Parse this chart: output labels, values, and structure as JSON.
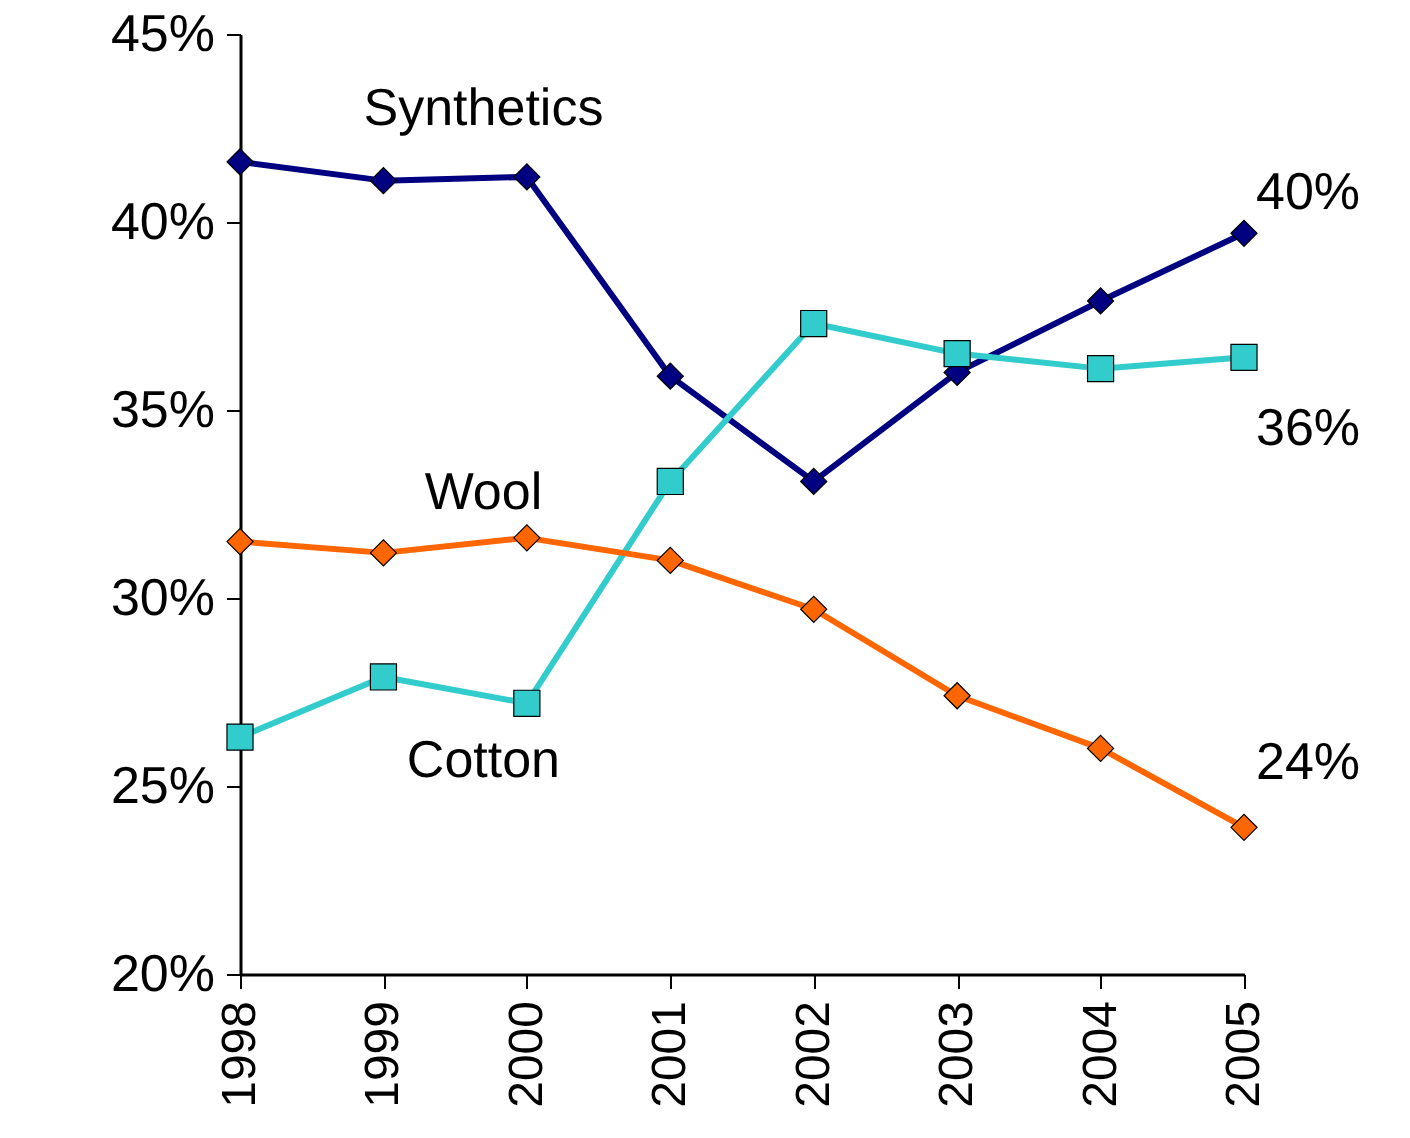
{
  "chart_data": {
    "type": "line",
    "categories": [
      "1998",
      "1999",
      "2000",
      "2001",
      "2002",
      "2003",
      "2004",
      "2005"
    ],
    "series": [
      {
        "name": "Synthetics",
        "color": "#000080",
        "marker": "diamond",
        "values": [
          41.6,
          41.1,
          41.2,
          35.9,
          33.1,
          36.0,
          37.9,
          39.7
        ]
      },
      {
        "name": "Cotton",
        "color": "#33cccc",
        "marker": "square",
        "values": [
          26.3,
          27.9,
          27.2,
          33.1,
          37.3,
          36.5,
          36.1,
          36.4
        ]
      },
      {
        "name": "Wool",
        "color": "#ff6600",
        "marker": "diamond",
        "values": [
          31.5,
          31.2,
          31.6,
          31.0,
          29.7,
          27.4,
          26.0,
          23.9
        ]
      }
    ],
    "ylim": [
      20,
      45
    ],
    "yticks": [
      {
        "value": 20,
        "label": "20%"
      },
      {
        "value": 25,
        "label": "25%"
      },
      {
        "value": 30,
        "label": "30%"
      },
      {
        "value": 35,
        "label": "35%"
      },
      {
        "value": 40,
        "label": "40%"
      },
      {
        "value": 45,
        "label": "45%"
      }
    ],
    "annotations": [
      {
        "text": "40%",
        "x": "2005",
        "y": 39.7
      },
      {
        "text": "36%",
        "x": "2005",
        "y": 36.4
      },
      {
        "text": "24%",
        "x": "2005",
        "y": 23.9
      }
    ],
    "grid": false,
    "line_style": "solid"
  }
}
